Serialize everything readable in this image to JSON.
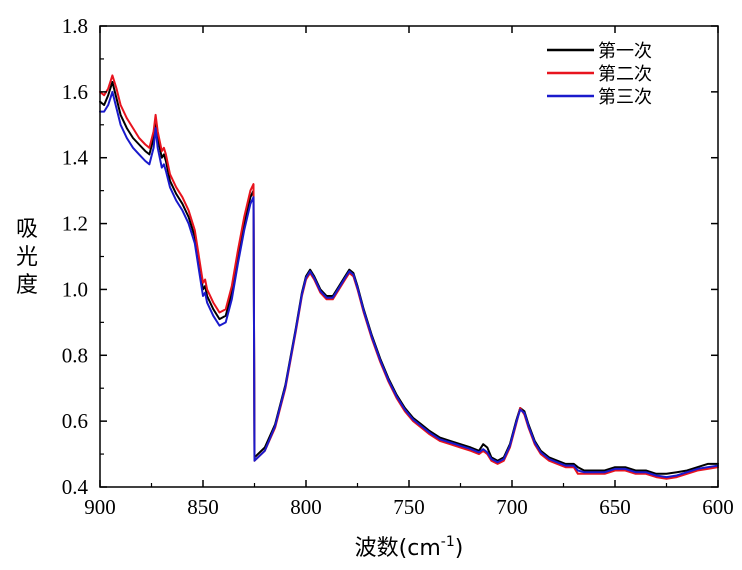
{
  "chart_data": {
    "type": "line",
    "title": "",
    "xlabel": "波数(cm",
    "xlabel_sup": "-1",
    "xlabel_close": ")",
    "ylabel": [
      "吸",
      "光",
      "度"
    ],
    "xlim": [
      900,
      600
    ],
    "ylim": [
      0.4,
      1.8
    ],
    "x_reversed": true,
    "grid": false,
    "legend_position": "top-right",
    "x_ticks": [
      900,
      850,
      800,
      750,
      700,
      650,
      600
    ],
    "x_tick_labels": [
      "900",
      "850",
      "800",
      "750",
      "700",
      "650",
      "600"
    ],
    "y_ticks": [
      0.4,
      0.6,
      0.8,
      1.0,
      1.2,
      1.4,
      1.6,
      1.8
    ],
    "y_tick_labels": [
      "0.4",
      "0.6",
      "0.8",
      "1.0",
      "1.2",
      "1.4",
      "1.6",
      "1.8"
    ],
    "series": [
      {
        "name": "第一次",
        "color": "#000000",
        "points": [
          [
            900,
            1.57
          ],
          [
            898,
            1.56
          ],
          [
            896,
            1.59
          ],
          [
            894,
            1.63
          ],
          [
            892,
            1.58
          ],
          [
            890,
            1.53
          ],
          [
            887,
            1.49
          ],
          [
            884,
            1.46
          ],
          [
            881,
            1.44
          ],
          [
            878,
            1.42
          ],
          [
            876,
            1.41
          ],
          [
            874,
            1.46
          ],
          [
            873,
            1.52
          ],
          [
            872,
            1.46
          ],
          [
            870,
            1.4
          ],
          [
            869,
            1.41
          ],
          [
            868,
            1.39
          ],
          [
            866,
            1.33
          ],
          [
            863,
            1.29
          ],
          [
            860,
            1.26
          ],
          [
            857,
            1.22
          ],
          [
            854,
            1.16
          ],
          [
            852,
            1.08
          ],
          [
            850,
            1.0
          ],
          [
            849,
            1.01
          ],
          [
            848,
            0.98
          ],
          [
            845,
            0.94
          ],
          [
            842,
            0.91
          ],
          [
            839,
            0.92
          ],
          [
            836,
            0.99
          ],
          [
            833,
            1.1
          ],
          [
            830,
            1.2
          ],
          [
            827,
            1.28
          ],
          [
            825.5,
            1.3
          ],
          [
            825,
            0.49
          ],
          [
            820,
            0.52
          ],
          [
            815,
            0.59
          ],
          [
            810,
            0.71
          ],
          [
            805,
            0.88
          ],
          [
            802,
            0.99
          ],
          [
            800,
            1.04
          ],
          [
            798,
            1.06
          ],
          [
            796,
            1.04
          ],
          [
            793,
            1.0
          ],
          [
            790,
            0.98
          ],
          [
            787,
            0.98
          ],
          [
            784,
            1.01
          ],
          [
            781,
            1.04
          ],
          [
            779,
            1.06
          ],
          [
            777,
            1.05
          ],
          [
            775,
            1.01
          ],
          [
            772,
            0.94
          ],
          [
            768,
            0.86
          ],
          [
            764,
            0.79
          ],
          [
            760,
            0.73
          ],
          [
            756,
            0.68
          ],
          [
            752,
            0.64
          ],
          [
            748,
            0.61
          ],
          [
            744,
            0.59
          ],
          [
            740,
            0.57
          ],
          [
            735,
            0.55
          ],
          [
            730,
            0.54
          ],
          [
            725,
            0.53
          ],
          [
            720,
            0.52
          ],
          [
            716,
            0.51
          ],
          [
            714,
            0.53
          ],
          [
            712,
            0.52
          ],
          [
            710,
            0.49
          ],
          [
            707,
            0.48
          ],
          [
            704,
            0.49
          ],
          [
            701,
            0.53
          ],
          [
            698,
            0.6
          ],
          [
            696,
            0.64
          ],
          [
            694,
            0.63
          ],
          [
            692,
            0.59
          ],
          [
            689,
            0.54
          ],
          [
            686,
            0.51
          ],
          [
            682,
            0.49
          ],
          [
            678,
            0.48
          ],
          [
            674,
            0.47
          ],
          [
            670,
            0.47
          ],
          [
            668,
            0.46
          ],
          [
            665,
            0.45
          ],
          [
            660,
            0.45
          ],
          [
            655,
            0.45
          ],
          [
            650,
            0.46
          ],
          [
            645,
            0.46
          ],
          [
            640,
            0.45
          ],
          [
            635,
            0.45
          ],
          [
            630,
            0.44
          ],
          [
            625,
            0.44
          ],
          [
            620,
            0.445
          ],
          [
            615,
            0.45
          ],
          [
            610,
            0.46
          ],
          [
            605,
            0.47
          ],
          [
            600,
            0.47
          ]
        ]
      },
      {
        "name": "第二次",
        "color": "#e8141e",
        "points": [
          [
            900,
            1.6
          ],
          [
            898,
            1.59
          ],
          [
            896,
            1.61
          ],
          [
            894,
            1.65
          ],
          [
            892,
            1.61
          ],
          [
            890,
            1.56
          ],
          [
            887,
            1.52
          ],
          [
            884,
            1.49
          ],
          [
            881,
            1.46
          ],
          [
            878,
            1.44
          ],
          [
            876,
            1.43
          ],
          [
            874,
            1.48
          ],
          [
            873,
            1.53
          ],
          [
            872,
            1.48
          ],
          [
            870,
            1.42
          ],
          [
            869,
            1.43
          ],
          [
            868,
            1.41
          ],
          [
            866,
            1.35
          ],
          [
            863,
            1.31
          ],
          [
            860,
            1.28
          ],
          [
            857,
            1.24
          ],
          [
            854,
            1.18
          ],
          [
            852,
            1.1
          ],
          [
            850,
            1.02
          ],
          [
            849,
            1.03
          ],
          [
            848,
            1.0
          ],
          [
            845,
            0.96
          ],
          [
            842,
            0.93
          ],
          [
            839,
            0.94
          ],
          [
            836,
            1.01
          ],
          [
            833,
            1.12
          ],
          [
            830,
            1.22
          ],
          [
            827,
            1.3
          ],
          [
            825.5,
            1.32
          ],
          [
            825,
            0.48
          ],
          [
            820,
            0.51
          ],
          [
            815,
            0.58
          ],
          [
            810,
            0.7
          ],
          [
            805,
            0.87
          ],
          [
            802,
            0.98
          ],
          [
            800,
            1.03
          ],
          [
            798,
            1.05
          ],
          [
            796,
            1.03
          ],
          [
            793,
            0.99
          ],
          [
            790,
            0.97
          ],
          [
            787,
            0.97
          ],
          [
            784,
            1.0
          ],
          [
            781,
            1.03
          ],
          [
            779,
            1.05
          ],
          [
            777,
            1.04
          ],
          [
            775,
            1.0
          ],
          [
            772,
            0.93
          ],
          [
            768,
            0.85
          ],
          [
            764,
            0.78
          ],
          [
            760,
            0.72
          ],
          [
            756,
            0.67
          ],
          [
            752,
            0.63
          ],
          [
            748,
            0.6
          ],
          [
            744,
            0.58
          ],
          [
            740,
            0.56
          ],
          [
            735,
            0.54
          ],
          [
            730,
            0.53
          ],
          [
            725,
            0.52
          ],
          [
            720,
            0.51
          ],
          [
            716,
            0.5
          ],
          [
            714,
            0.51
          ],
          [
            712,
            0.5
          ],
          [
            710,
            0.48
          ],
          [
            707,
            0.47
          ],
          [
            704,
            0.48
          ],
          [
            701,
            0.52
          ],
          [
            698,
            0.59
          ],
          [
            696,
            0.64
          ],
          [
            694,
            0.62
          ],
          [
            692,
            0.58
          ],
          [
            689,
            0.53
          ],
          [
            686,
            0.5
          ],
          [
            682,
            0.48
          ],
          [
            678,
            0.47
          ],
          [
            674,
            0.46
          ],
          [
            670,
            0.46
          ],
          [
            668,
            0.44
          ],
          [
            665,
            0.44
          ],
          [
            660,
            0.44
          ],
          [
            655,
            0.44
          ],
          [
            650,
            0.45
          ],
          [
            645,
            0.45
          ],
          [
            640,
            0.44
          ],
          [
            635,
            0.44
          ],
          [
            630,
            0.43
          ],
          [
            625,
            0.425
          ],
          [
            620,
            0.43
          ],
          [
            615,
            0.44
          ],
          [
            610,
            0.45
          ],
          [
            605,
            0.455
          ],
          [
            600,
            0.46
          ]
        ]
      },
      {
        "name": "第三次",
        "color": "#1a1acc",
        "points": [
          [
            900,
            1.54
          ],
          [
            898,
            1.54
          ],
          [
            896,
            1.56
          ],
          [
            894,
            1.6
          ],
          [
            892,
            1.55
          ],
          [
            890,
            1.5
          ],
          [
            887,
            1.46
          ],
          [
            884,
            1.43
          ],
          [
            881,
            1.41
          ],
          [
            878,
            1.39
          ],
          [
            876,
            1.38
          ],
          [
            874,
            1.43
          ],
          [
            873,
            1.49
          ],
          [
            872,
            1.43
          ],
          [
            870,
            1.37
          ],
          [
            869,
            1.38
          ],
          [
            868,
            1.36
          ],
          [
            866,
            1.31
          ],
          [
            863,
            1.27
          ],
          [
            860,
            1.24
          ],
          [
            857,
            1.2
          ],
          [
            854,
            1.14
          ],
          [
            852,
            1.06
          ],
          [
            850,
            0.98
          ],
          [
            849,
            0.99
          ],
          [
            848,
            0.96
          ],
          [
            845,
            0.92
          ],
          [
            842,
            0.89
          ],
          [
            839,
            0.9
          ],
          [
            836,
            0.97
          ],
          [
            833,
            1.08
          ],
          [
            830,
            1.18
          ],
          [
            827,
            1.26
          ],
          [
            825.5,
            1.28
          ],
          [
            825,
            0.48
          ],
          [
            820,
            0.51
          ],
          [
            815,
            0.585
          ],
          [
            810,
            0.705
          ],
          [
            805,
            0.875
          ],
          [
            802,
            0.985
          ],
          [
            800,
            1.035
          ],
          [
            798,
            1.055
          ],
          [
            796,
            1.035
          ],
          [
            793,
            0.995
          ],
          [
            790,
            0.975
          ],
          [
            787,
            0.975
          ],
          [
            784,
            1.005
          ],
          [
            781,
            1.035
          ],
          [
            779,
            1.055
          ],
          [
            777,
            1.045
          ],
          [
            775,
            1.005
          ],
          [
            772,
            0.935
          ],
          [
            768,
            0.855
          ],
          [
            764,
            0.785
          ],
          [
            760,
            0.725
          ],
          [
            756,
            0.675
          ],
          [
            752,
            0.635
          ],
          [
            748,
            0.605
          ],
          [
            744,
            0.585
          ],
          [
            740,
            0.565
          ],
          [
            735,
            0.545
          ],
          [
            730,
            0.535
          ],
          [
            725,
            0.525
          ],
          [
            720,
            0.515
          ],
          [
            716,
            0.505
          ],
          [
            714,
            0.515
          ],
          [
            712,
            0.505
          ],
          [
            710,
            0.485
          ],
          [
            707,
            0.475
          ],
          [
            704,
            0.485
          ],
          [
            701,
            0.525
          ],
          [
            698,
            0.595
          ],
          [
            696,
            0.635
          ],
          [
            694,
            0.625
          ],
          [
            692,
            0.585
          ],
          [
            689,
            0.535
          ],
          [
            686,
            0.505
          ],
          [
            682,
            0.485
          ],
          [
            678,
            0.475
          ],
          [
            674,
            0.465
          ],
          [
            670,
            0.465
          ],
          [
            668,
            0.45
          ],
          [
            665,
            0.445
          ],
          [
            660,
            0.445
          ],
          [
            655,
            0.445
          ],
          [
            650,
            0.455
          ],
          [
            645,
            0.455
          ],
          [
            640,
            0.445
          ],
          [
            635,
            0.445
          ],
          [
            630,
            0.435
          ],
          [
            625,
            0.43
          ],
          [
            620,
            0.435
          ],
          [
            615,
            0.445
          ],
          [
            610,
            0.455
          ],
          [
            605,
            0.46
          ],
          [
            600,
            0.465
          ]
        ]
      }
    ]
  }
}
